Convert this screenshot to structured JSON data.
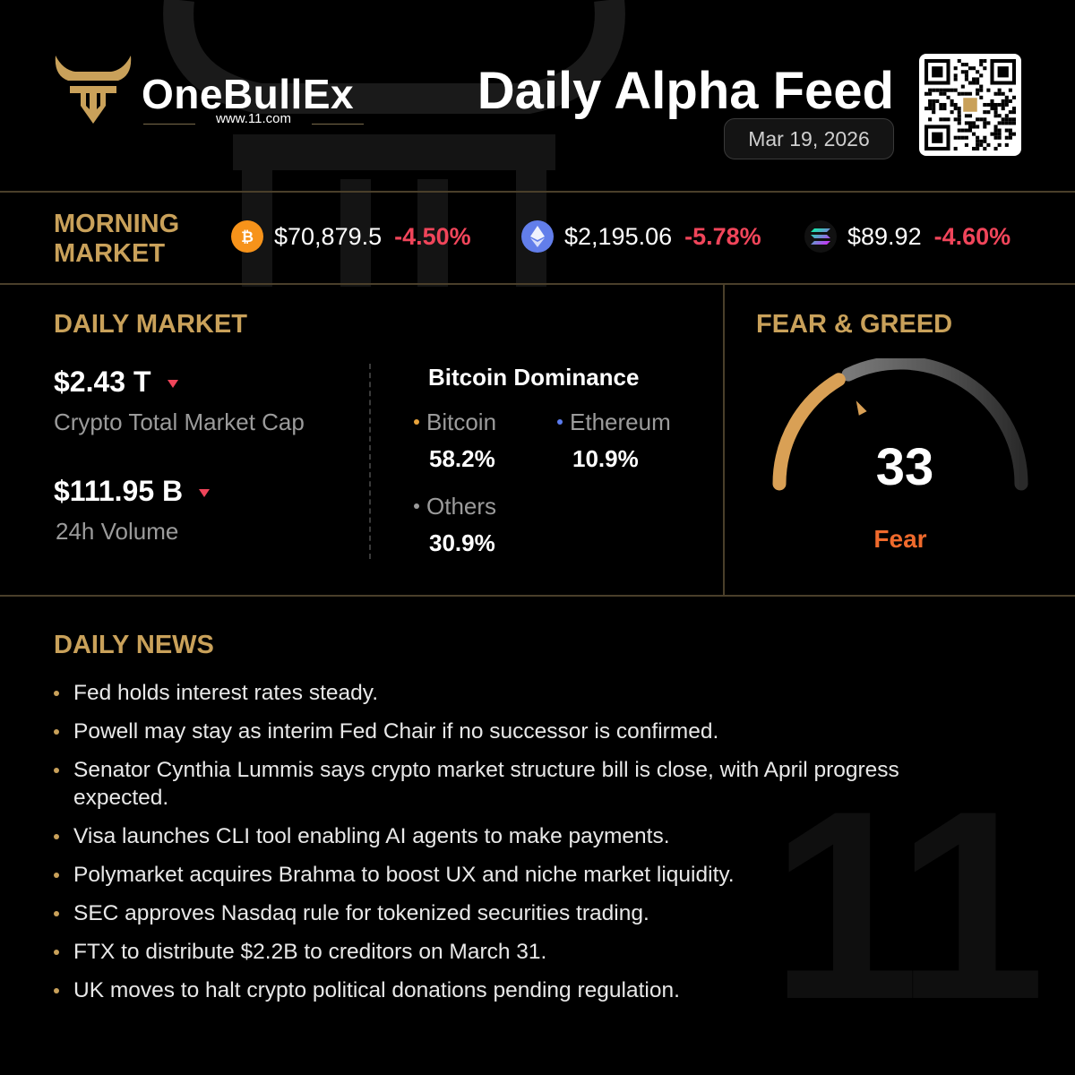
{
  "brand": {
    "name": "OneBullEx",
    "url": "www.11.com",
    "logo_icon": "bull-head-icon"
  },
  "header": {
    "title": "Daily Alpha Feed",
    "date": "Mar 19, 2026",
    "qr_icon": "qr-code-icon"
  },
  "morning_market": {
    "title_line1": "MORNING",
    "title_line2": "MARKET",
    "coins": [
      {
        "icon": "bitcoin-icon",
        "price": "$70,879.5",
        "change": "-4.50%",
        "color": "#f7931a"
      },
      {
        "icon": "ethereum-icon",
        "price": "$2,195.06",
        "change": "-5.78%",
        "color": "#627eea"
      },
      {
        "icon": "solana-icon",
        "price": "$89.92",
        "change": "-4.60%",
        "color": "#9945ff"
      }
    ]
  },
  "daily_market": {
    "title": "DAILY MARKET",
    "market_cap": {
      "value": "$2.43 T",
      "label": "Crypto Total Market Cap",
      "trend": "down"
    },
    "volume": {
      "value": "$111.95 B",
      "label": "24h Volume",
      "trend": "down"
    },
    "dominance": {
      "title": "Bitcoin Dominance",
      "items": [
        {
          "name": "Bitcoin",
          "value": "58.2%",
          "dot_color": "#e8a33c"
        },
        {
          "name": "Ethereum",
          "value": "10.9%",
          "dot_color": "#5b7cf0"
        },
        {
          "name": "Others",
          "value": "30.9%",
          "dot_color": "#9b9b9b"
        }
      ]
    }
  },
  "fear_greed": {
    "title": "FEAR & GREED",
    "value": "33",
    "label": "Fear",
    "level": 33
  },
  "news": {
    "title": "DAILY NEWS",
    "items": [
      "Fed holds interest rates steady.",
      "Powell may stay as interim Fed Chair if no successor is confirmed.",
      "Senator Cynthia Lummis says crypto market structure bill is close, with April progress expected.",
      "Visa launches CLI tool enabling AI agents to make payments.",
      "Polymarket acquires Brahma to boost UX and niche market liquidity.",
      "SEC approves Nasdaq rule for tokenized securities trading.",
      "FTX to distribute $2.2B to creditors on March 31.",
      "UK moves to halt crypto political donations pending regulation."
    ]
  },
  "colors": {
    "gold": "#c9a15a",
    "negative": "#f0455a",
    "fear": "#f06a2c",
    "background": "#000000"
  }
}
